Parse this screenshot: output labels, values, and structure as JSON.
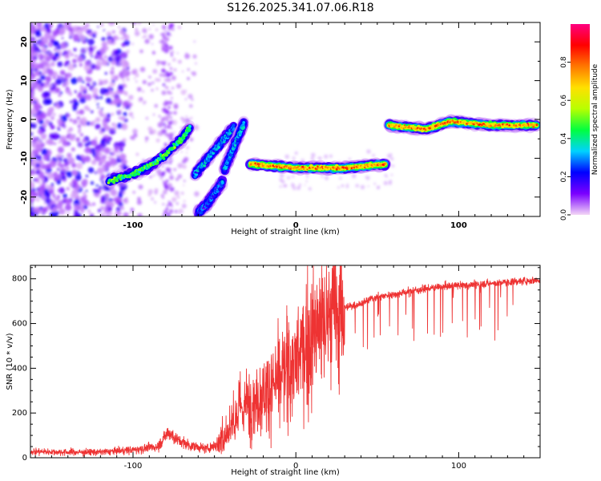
{
  "title": "S126.2025.341.07.06.R18",
  "chart_data": [
    {
      "type": "heatmap",
      "name": "spectrogram",
      "xlabel": "Height of straight line (km)",
      "ylabel": "Frequency (Hz)",
      "xlim": [
        -163,
        150
      ],
      "ylim": [
        -25,
        25
      ],
      "xticks": [
        -100,
        0,
        100
      ],
      "yticks": [
        -20,
        -10,
        0,
        10,
        20
      ],
      "colorbar": {
        "label": "Normalized spectral amplitude",
        "range": [
          0,
          1
        ],
        "ticks": [
          0.0,
          0.2,
          0.4,
          0.6,
          0.8
        ],
        "stops": [
          "#f3d6f6",
          "#7b00ff",
          "#0000ff",
          "#00d2ff",
          "#00ff40",
          "#b8ff00",
          "#ffe000",
          "#ff7800",
          "#ff0000",
          "#ff0080"
        ]
      },
      "features": [
        {
          "name": "rising track",
          "x": [
            -115,
            -100,
            -90,
            -80,
            -70,
            -65
          ],
          "y": [
            -16,
            -14,
            -12,
            -9,
            -5,
            -2
          ],
          "amplitude": 0.45
        },
        {
          "name": "steep track A",
          "x": [
            -60,
            -55,
            -50,
            -45
          ],
          "y": [
            -24,
            -22,
            -19,
            -16
          ],
          "amplitude": 0.25
        },
        {
          "name": "steep track B",
          "x": [
            -62,
            -56,
            -50,
            -44,
            -38
          ],
          "y": [
            -14,
            -11,
            -8,
            -5,
            -2
          ],
          "amplitude": 0.3
        },
        {
          "name": "steep track C",
          "x": [
            -44,
            -40,
            -36,
            -32
          ],
          "y": [
            -13,
            -9,
            -5,
            -1
          ],
          "amplitude": 0.3
        },
        {
          "name": "flat track low",
          "x": [
            -28,
            0,
            30,
            55
          ],
          "y": [
            -11.5,
            -12.5,
            -12.5,
            -11.5
          ],
          "amplitude": 0.95
        },
        {
          "name": "flat track high",
          "x": [
            57,
            80,
            95,
            120,
            148
          ],
          "y": [
            -1.5,
            -2.5,
            -0.5,
            -1.5,
            -1.5
          ],
          "amplitude": 0.95
        }
      ]
    },
    {
      "type": "line",
      "name": "snr",
      "xlabel": "Height of straight line (km)",
      "ylabel": "SNR (10 * v/v)",
      "xlim": [
        -163,
        150
      ],
      "ylim": [
        0,
        860
      ],
      "xticks": [
        -100,
        0,
        100
      ],
      "yticks": [
        0,
        200,
        400,
        600,
        800
      ],
      "color": "#ee3333",
      "series": [
        {
          "name": "SNR",
          "x": [
            -163,
            -140,
            -120,
            -100,
            -85,
            -78,
            -72,
            -65,
            -55,
            -48,
            -42,
            -36,
            -30,
            -24,
            -18,
            -12,
            -6,
            0,
            6,
            12,
            18,
            24,
            30,
            40,
            50,
            60,
            70,
            80,
            90,
            100,
            110,
            120,
            130,
            140,
            150
          ],
          "y": [
            28,
            25,
            25,
            35,
            50,
            115,
            75,
            55,
            40,
            60,
            110,
            200,
            240,
            260,
            300,
            330,
            390,
            430,
            490,
            560,
            610,
            650,
            670,
            690,
            720,
            730,
            745,
            755,
            765,
            770,
            775,
            780,
            785,
            790,
            795
          ]
        }
      ]
    }
  ]
}
